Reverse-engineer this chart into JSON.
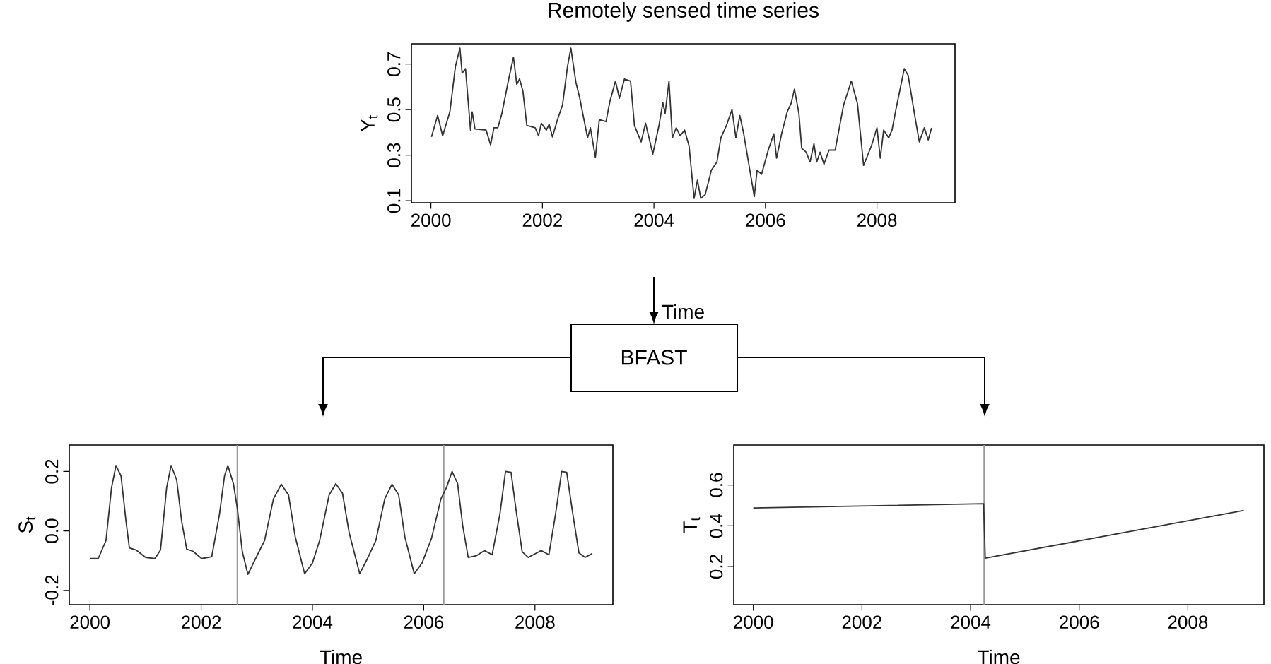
{
  "chart_data": [
    {
      "type": "line",
      "title": "Remotely sensed time series",
      "xlabel": "Time",
      "ylabel": "Y$_{t}$",
      "annotations": [
        "BFAST"
      ],
      "xlim": [
        1999.65,
        2009.4
      ],
      "ylim": [
        0.091,
        0.789
      ],
      "xticks": [
        2000,
        2002,
        2004,
        2006,
        2008
      ],
      "yticks": [
        0.1,
        0.3,
        0.5,
        0.7
      ],
      "series": [
        {
          "color": "#333333",
          "x": [
            2000.01,
            2000.12,
            2000.21,
            2000.34,
            2000.44,
            2000.52,
            2000.56,
            2000.62,
            2000.71,
            2000.74,
            2000.79,
            2000.99,
            2001.07,
            2001.13,
            2001.2,
            2001.27,
            2001.4,
            2001.48,
            2001.54,
            2001.59,
            2001.65,
            2001.72,
            2001.87,
            2001.93,
            2001.98,
            2002.07,
            2002.12,
            2002.18,
            2002.27,
            2002.36,
            2002.45,
            2002.51,
            2002.6,
            2002.67,
            2002.73,
            2002.81,
            2002.86,
            2002.95,
            2003.02,
            2003.14,
            2003.21,
            2003.31,
            2003.38,
            2003.47,
            2003.58,
            2003.65,
            2003.77,
            2003.85,
            2003.98,
            2004.09,
            2004.16,
            2004.2,
            2004.27,
            2004.33,
            2004.4,
            2004.47,
            2004.55,
            2004.63,
            2004.72,
            2004.78,
            2004.84,
            2004.92,
            2005.03,
            2005.13,
            2005.2,
            2005.3,
            2005.4,
            2005.47,
            2005.54,
            2005.61,
            2005.72,
            2005.8,
            2005.85,
            2005.93,
            2006.05,
            2006.15,
            2006.2,
            2006.29,
            2006.39,
            2006.46,
            2006.52,
            2006.6,
            2006.65,
            2006.73,
            2006.8,
            2006.87,
            2006.92,
            2006.98,
            2007.05,
            2007.14,
            2007.25,
            2007.4,
            2007.54,
            2007.65,
            2007.76,
            2007.9,
            2008.0,
            2008.06,
            2008.12,
            2008.21,
            2008.27,
            2008.34,
            2008.49,
            2008.56,
            2008.69,
            2008.76,
            2008.85,
            2008.92,
            2008.98
          ],
          "values": [
            0.38,
            0.474,
            0.385,
            0.49,
            0.69,
            0.77,
            0.66,
            0.68,
            0.41,
            0.49,
            0.415,
            0.41,
            0.345,
            0.42,
            0.42,
            0.48,
            0.64,
            0.73,
            0.61,
            0.635,
            0.58,
            0.43,
            0.42,
            0.385,
            0.44,
            0.41,
            0.435,
            0.38,
            0.456,
            0.52,
            0.69,
            0.77,
            0.62,
            0.55,
            0.474,
            0.376,
            0.42,
            0.29,
            0.456,
            0.447,
            0.536,
            0.625,
            0.55,
            0.634,
            0.625,
            0.43,
            0.358,
            0.44,
            0.305,
            0.43,
            0.53,
            0.483,
            0.625,
            0.376,
            0.42,
            0.385,
            0.41,
            0.34,
            0.11,
            0.19,
            0.11,
            0.127,
            0.234,
            0.27,
            0.376,
            0.43,
            0.5,
            0.376,
            0.474,
            0.394,
            0.234,
            0.118,
            0.234,
            0.216,
            0.322,
            0.394,
            0.287,
            0.394,
            0.49,
            0.527,
            0.59,
            0.483,
            0.33,
            0.313,
            0.27,
            0.35,
            0.27,
            0.313,
            0.26,
            0.322,
            0.322,
            0.518,
            0.625,
            0.527,
            0.255,
            0.34,
            0.42,
            0.287,
            0.41,
            0.376,
            0.41,
            0.5,
            0.68,
            0.65,
            0.456,
            0.358,
            0.42,
            0.367,
            0.42
          ]
        }
      ]
    },
    {
      "type": "line",
      "xlabel": "Time",
      "ylabel": "S$_{t}$",
      "xlim": [
        1999.63,
        2009.4
      ],
      "ylim": [
        -0.248,
        0.289
      ],
      "xticks": [
        2000,
        2002,
        2004,
        2006,
        2008
      ],
      "yticks": [
        -0.2,
        {
          "value": 0,
          "label": "0.0"
        },
        0.2
      ],
      "ref_lines": [
        {
          "axis": "x",
          "value": 2002.65,
          "color": "#999999"
        },
        {
          "axis": "x",
          "value": 2006.36,
          "color": "#999999"
        }
      ],
      "series": [
        {
          "color": "#333333",
          "x": [
            2000.0,
            2000.15,
            2000.29,
            2000.39,
            2000.47,
            2000.56,
            2000.65,
            2000.71,
            2000.83,
            2001.0,
            2001.17,
            2001.27,
            2001.38,
            2001.46,
            2001.56,
            2001.65,
            2001.74,
            2001.85,
            2002.01,
            2002.19,
            2002.33,
            2002.42,
            2002.48,
            2002.58,
            2002.65,
            2002.74,
            2002.84,
            2002.97,
            2003.14,
            2003.3,
            2003.44,
            2003.57,
            2003.69,
            2003.86,
            2004.0,
            2004.13,
            2004.3,
            2004.42,
            2004.54,
            2004.66,
            2004.85,
            2004.98,
            2005.14,
            2005.3,
            2005.43,
            2005.55,
            2005.66,
            2005.83,
            2005.97,
            2006.14,
            2006.31,
            2006.41,
            2006.51,
            2006.61,
            2006.7,
            2006.8,
            2006.95,
            2007.09,
            2007.23,
            2007.37,
            2007.47,
            2007.57,
            2007.66,
            2007.77,
            2007.88,
            2008.11,
            2008.25,
            2008.37,
            2008.48,
            2008.57,
            2008.68,
            2008.79,
            2008.9,
            2009.03
          ],
          "values": [
            -0.093,
            -0.093,
            -0.032,
            0.146,
            0.22,
            0.185,
            0.032,
            -0.057,
            -0.064,
            -0.089,
            -0.093,
            -0.064,
            0.146,
            0.22,
            0.172,
            0.032,
            -0.061,
            -0.068,
            -0.093,
            -0.087,
            0.057,
            0.185,
            0.22,
            0.159,
            0.076,
            -0.07,
            -0.146,
            -0.096,
            -0.032,
            0.108,
            0.157,
            0.121,
            -0.019,
            -0.144,
            -0.108,
            -0.032,
            0.121,
            0.159,
            0.127,
            -0.006,
            -0.144,
            -0.096,
            -0.032,
            0.108,
            0.157,
            0.121,
            -0.019,
            -0.144,
            -0.108,
            -0.025,
            0.108,
            0.146,
            0.2,
            0.159,
            0.019,
            -0.089,
            -0.083,
            -0.066,
            -0.08,
            0.057,
            0.2,
            0.197,
            0.07,
            -0.07,
            -0.089,
            -0.066,
            -0.08,
            0.057,
            0.2,
            0.197,
            0.057,
            -0.074,
            -0.089,
            -0.076
          ]
        }
      ]
    },
    {
      "type": "line",
      "xlabel": "Time",
      "ylabel": "T$_{t}$",
      "xlim": [
        1999.64,
        2009.4
      ],
      "ylim": [
        0.013,
        0.796
      ],
      "xticks": [
        2000,
        2002,
        2004,
        2006,
        2008
      ],
      "yticks": [
        0.2,
        0.4,
        0.6
      ],
      "ref_lines": [
        {
          "axis": "x",
          "value": 2004.25,
          "color": "#999999"
        }
      ],
      "series": [
        {
          "color": "#333333",
          "x": [
            2000.0,
            2004.24,
            2004.27,
            2009.03
          ],
          "values": [
            0.487,
            0.508,
            0.241,
            0.475
          ]
        }
      ]
    }
  ]
}
